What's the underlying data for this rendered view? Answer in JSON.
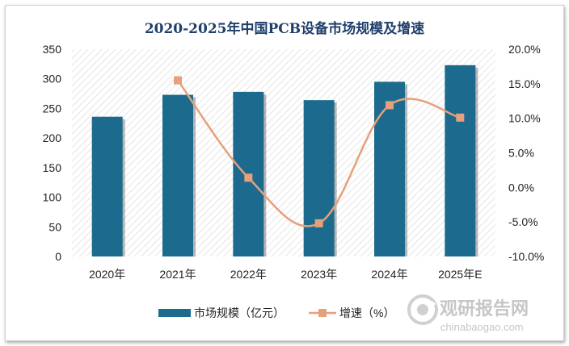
{
  "chart_data": {
    "type": "bar+line",
    "title": "2020-2025年中国PCB设备市场规模及增速",
    "categories": [
      "2020年",
      "2021年",
      "2022年",
      "2023年",
      "2024年",
      "2025年E"
    ],
    "series": [
      {
        "name": "市场规模（亿元）",
        "type": "bar",
        "axis": "left",
        "color": "#1c6b8e",
        "values": [
          236,
          273,
          278,
          264,
          295,
          323
        ]
      },
      {
        "name": "增速（%）",
        "type": "line",
        "axis": "right",
        "color": "#e6a07a",
        "values": [
          null,
          15.5,
          1.4,
          -5.2,
          11.9,
          10.1
        ]
      }
    ],
    "y_left": {
      "min": 0,
      "max": 350,
      "step": 50,
      "ticks": [
        "0",
        "50",
        "100",
        "150",
        "200",
        "250",
        "300",
        "350"
      ]
    },
    "y_right": {
      "min": -10,
      "max": 20,
      "step": 5,
      "ticks": [
        "-10.0%",
        "-5.0%",
        "0.0%",
        "5.0%",
        "10.0%",
        "15.0%",
        "20.0%"
      ]
    },
    "legend_position": "bottom",
    "watermark": {
      "brand": "观研报告网",
      "url": "chinabaogao.com"
    }
  }
}
